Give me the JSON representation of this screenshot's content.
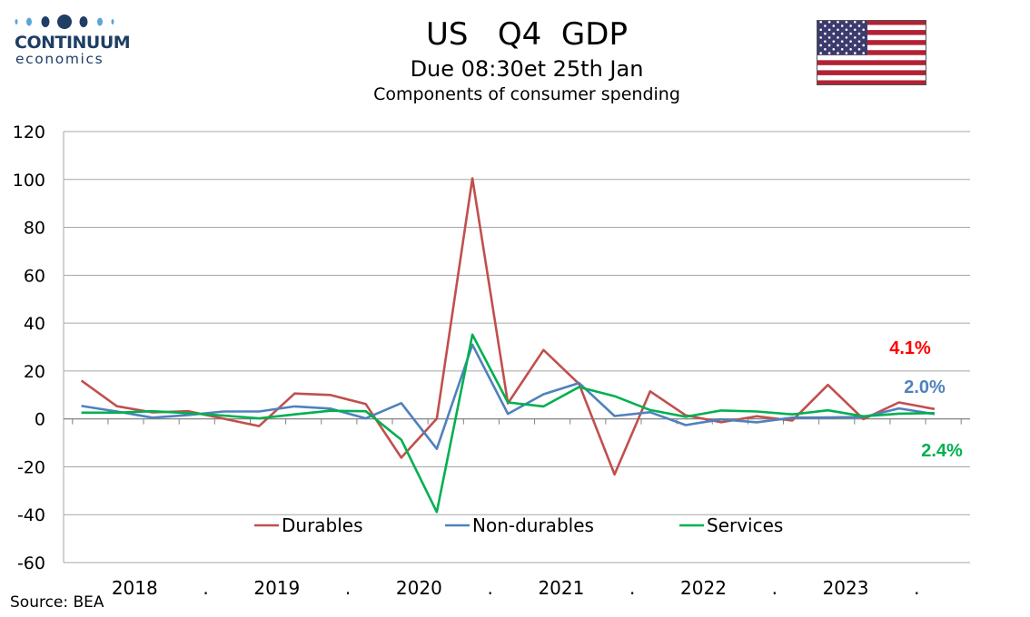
{
  "header": {
    "title": "US   Q4  GDP",
    "subtitle": "Due 08:30et 25th Jan",
    "subtitle2": "Components of consumer spending"
  },
  "logo": {
    "name": "CONTINUUM",
    "sub": "economics",
    "color": "#1e3e64"
  },
  "flag": {
    "icon": "us-flag-icon"
  },
  "source": "Source: BEA",
  "chart_data": {
    "type": "line",
    "title": "Components of consumer spending",
    "ylim": [
      -60,
      120
    ],
    "yticks": [
      -60,
      -40,
      -20,
      0,
      20,
      40,
      60,
      80,
      100,
      120
    ],
    "grid": true,
    "legend_position": "bottom",
    "x_labels": [
      "2018",
      ".",
      "2019",
      ".",
      "2020",
      ".",
      "2021",
      ".",
      "2022",
      ".",
      "2023",
      "."
    ],
    "x": [
      "2017Q4",
      "2018Q1",
      "2018Q2",
      "2018Q3",
      "2018Q4",
      "2019Q1",
      "2019Q2",
      "2019Q3",
      "2019Q4",
      "2020Q1",
      "2020Q2",
      "2020Q3",
      "2020Q4",
      "2021Q1",
      "2021Q2",
      "2021Q3",
      "2021Q4",
      "2022Q1",
      "2022Q2",
      "2022Q3",
      "2022Q4",
      "2023Q1",
      "2023Q2",
      "2023Q3",
      "2023Q4"
    ],
    "series": [
      {
        "name": "Durables",
        "color": "#c0504d",
        "values": [
          16,
          5.3,
          2.7,
          3.2,
          0.1,
          -3,
          10.6,
          10,
          6.2,
          -16.2,
          0.1,
          100.5,
          6.5,
          28.8,
          14.6,
          -23.2,
          11.5,
          1.5,
          -1.4,
          1.1,
          -0.7,
          14.2,
          -0.1,
          6.9,
          4.1
        ]
      },
      {
        "name": "Non-durables",
        "color": "#4f81bd",
        "values": [
          5.4,
          3.1,
          0.5,
          1.6,
          3.1,
          3.1,
          5.2,
          4.3,
          0.2,
          6.6,
          -12.5,
          31,
          2.1,
          10.3,
          15,
          1.2,
          2.8,
          -2.6,
          -0.2,
          -1.4,
          0.5,
          0.6,
          0.8,
          4.4,
          2.0
        ]
      },
      {
        "name": "Services",
        "color": "#00b050",
        "values": [
          2.6,
          2.6,
          3.2,
          2.4,
          1.4,
          0.2,
          1.9,
          3.4,
          3.2,
          -8.7,
          -38.9,
          35.2,
          6.9,
          5.2,
          13.3,
          9.5,
          3.7,
          0.9,
          3.5,
          3.1,
          1.9,
          3.6,
          1.1,
          2.2,
          2.4
        ]
      }
    ],
    "annotations": [
      {
        "text": "4.1%",
        "series": "Durables",
        "color": "#ff0000"
      },
      {
        "text": "2.0%",
        "series": "Non-durables",
        "color": "#4f81bd"
      },
      {
        "text": "2.4%",
        "series": "Services",
        "color": "#00b050"
      }
    ]
  }
}
